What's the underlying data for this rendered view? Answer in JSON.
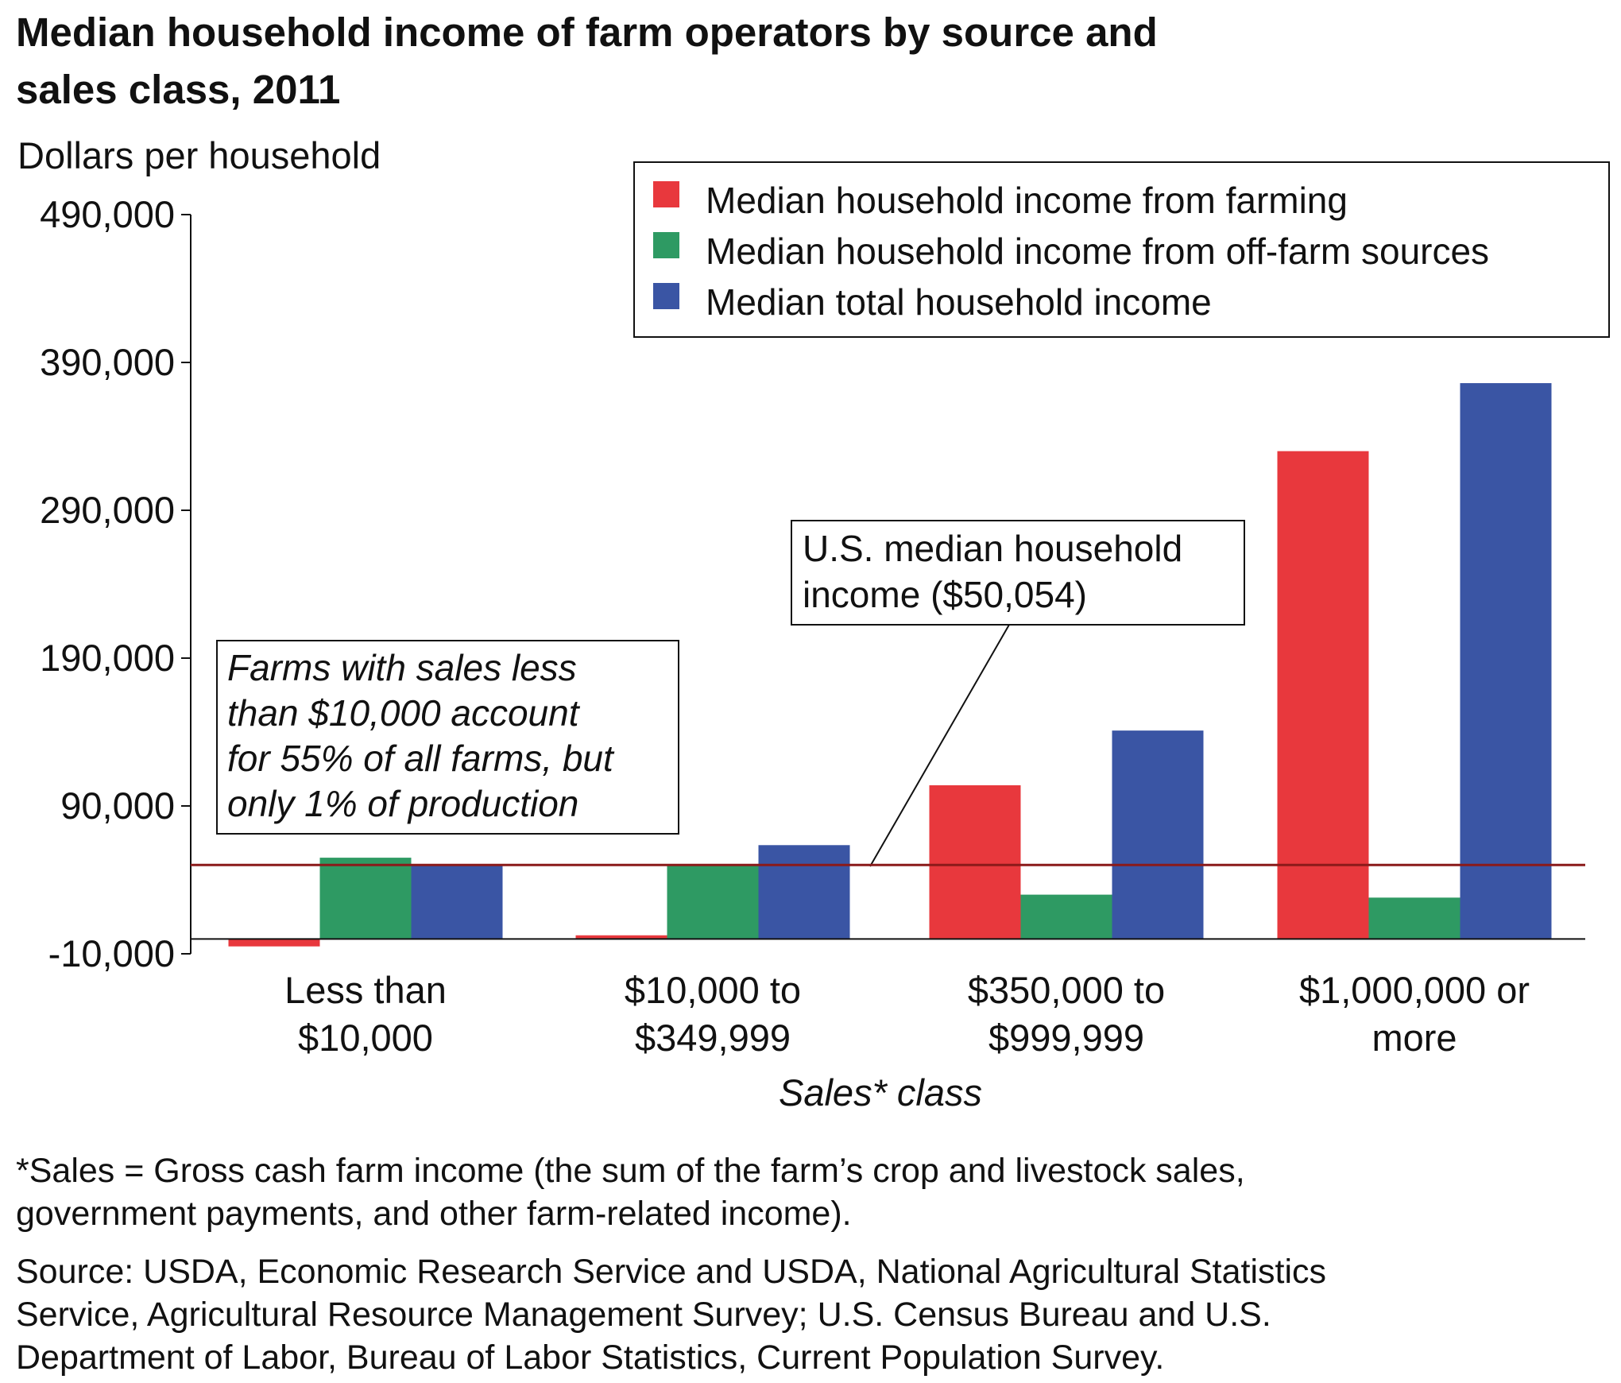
{
  "title_lines": [
    "Median household income of farm operators by source and",
    "sales class, 2011"
  ],
  "chart_data": {
    "type": "bar",
    "title": "Median household income of farm operators by source and sales class, 2011",
    "ylabel": "Dollars per household",
    "xlabel": "Sales* class",
    "ylim": [
      -10000,
      490000
    ],
    "yticks": [
      -10000,
      90000,
      190000,
      290000,
      390000,
      490000
    ],
    "ytick_labels": [
      "-10,000",
      "90,000",
      "190,000",
      "290,000",
      "390,000",
      "490,000"
    ],
    "categories": [
      "Less than $10,000",
      "$10,000 to $349,999",
      "$350,000 to $999,999",
      "$1,000,000 or more"
    ],
    "category_lines": [
      [
        "Less than",
        "$10,000"
      ],
      [
        "$10,000 to",
        "$349,999"
      ],
      [
        "$350,000 to",
        "$999,999"
      ],
      [
        "$1,000,000 or",
        "more"
      ]
    ],
    "series": [
      {
        "name": "Median household income from farming",
        "color": "#e8383d",
        "values": [
          -5000,
          2500,
          104000,
          330000
        ]
      },
      {
        "name": "Median household income from off-farm sources",
        "color": "#2e9a63",
        "values": [
          55000,
          50500,
          30000,
          28000
        ]
      },
      {
        "name": "Median total household income",
        "color": "#3a55a4",
        "values": [
          50500,
          63500,
          141000,
          376000
        ]
      }
    ],
    "reference_line": {
      "value": 50054,
      "color": "#8b1a1a"
    },
    "annotations": {
      "us_median": [
        "U.S. median household",
        "income ($50,054)"
      ],
      "small_farms": [
        "Farms with sales less",
        "than $10,000 account",
        "for 55% of all farms, but",
        "only 1% of production"
      ]
    },
    "legend_position": "top-right",
    "grid": false
  },
  "footnotes": {
    "sales_def": [
      "*Sales = Gross cash farm income (the sum of the farm’s crop and livestock sales,",
      "government payments, and other farm-related income)."
    ],
    "source": [
      "Source: USDA, Economic Research Service and USDA, National Agricultural Statistics",
      "Service, Agricultural Resource Management Survey; U.S. Census Bureau and U.S.",
      "Department of Labor, Bureau of Labor Statistics, Current Population Survey."
    ]
  }
}
